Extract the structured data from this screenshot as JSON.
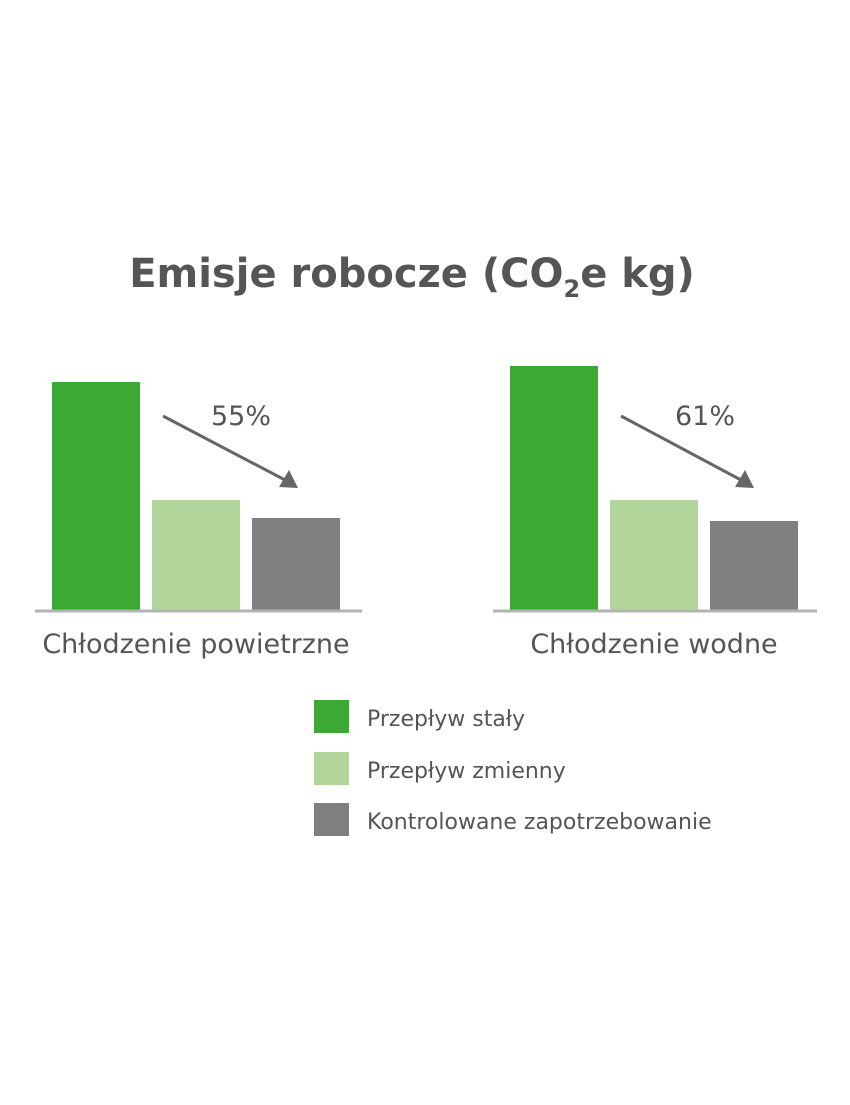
{
  "chart_data": {
    "type": "bar",
    "title": "Emisje robocze (CO",
    "title_subscript": "2",
    "title_suffix": "e kg)",
    "categories": [
      "Chłodzenie powietrzne",
      "Chłodzenie wodne"
    ],
    "series": [
      {
        "name": "Przepływ stały",
        "color": "#3ca935",
        "values": [
          228,
          244
        ]
      },
      {
        "name": "Przepływ zmienny",
        "color": "#b2d59c",
        "values": [
          110,
          110
        ]
      },
      {
        "name": "Kontrolowane zapotrzebowanie",
        "color": "#7f7f7f",
        "values": [
          92,
          89
        ]
      }
    ],
    "annotations": [
      "55%",
      "61%"
    ],
    "ylim": [
      0,
      250
    ],
    "grid": false,
    "legend_position": "bottom-right",
    "axis_color": "#b3b3b3",
    "arrow_color": "#666666"
  }
}
